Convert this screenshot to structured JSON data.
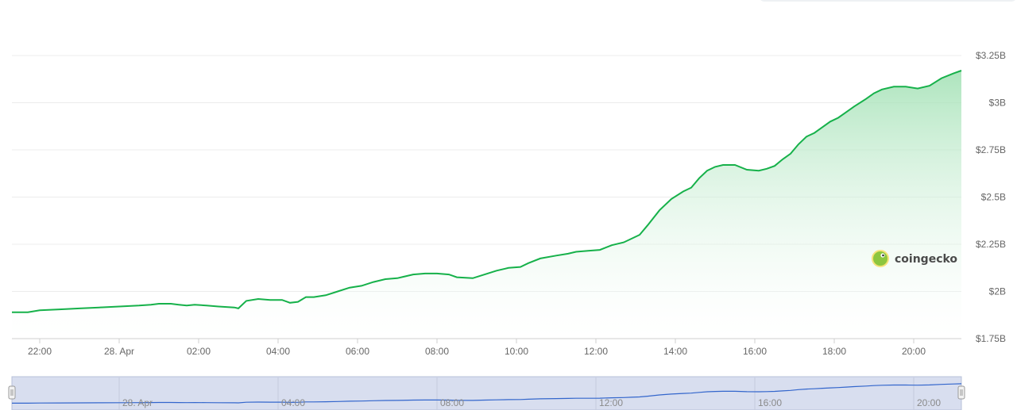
{
  "chart_data": {
    "type": "area",
    "title": "",
    "xlabel": "",
    "ylabel": "",
    "ylim": [
      1.75,
      3.25
    ],
    "y_unit": "B USD",
    "y_ticks": [
      "$1.75B",
      "$2B",
      "$2.25B",
      "$2.5B",
      "$2.75B",
      "$3B",
      "$3.25B"
    ],
    "x_ticks": [
      "22:00",
      "28. Apr",
      "02:00",
      "04:00",
      "06:00",
      "08:00",
      "10:00",
      "12:00",
      "14:00",
      "16:00",
      "18:00",
      "20:00"
    ],
    "x_range_hours": [
      -2.7,
      21.2
    ],
    "series": [
      {
        "color": "#16b14a",
        "fill_color": "#c7efd3",
        "x": [
          -2.7,
          -2.3,
          -2.0,
          -1.5,
          -1.0,
          -0.5,
          0.0,
          0.5,
          0.8,
          1.0,
          1.3,
          1.5,
          1.7,
          1.9,
          2.2,
          2.5,
          2.9,
          3.0,
          3.2,
          3.5,
          3.8,
          4.1,
          4.3,
          4.5,
          4.7,
          4.9,
          5.2,
          5.5,
          5.8,
          6.1,
          6.4,
          6.7,
          7.0,
          7.4,
          7.7,
          8.0,
          8.3,
          8.5,
          8.9,
          9.2,
          9.5,
          9.8,
          10.1,
          10.3,
          10.6,
          11.0,
          11.3,
          11.5,
          11.8,
          12.1,
          12.4,
          12.7,
          12.9,
          13.1,
          13.3,
          13.6,
          13.9,
          14.2,
          14.4,
          14.6,
          14.8,
          15.0,
          15.2,
          15.5,
          15.8,
          16.1,
          16.3,
          16.5,
          16.7,
          16.9,
          17.1,
          17.3,
          17.5,
          17.7,
          17.9,
          18.1,
          18.3,
          18.5,
          18.8,
          19.0,
          19.2,
          19.5,
          19.8,
          20.1,
          20.4,
          20.7,
          21.0,
          21.2
        ],
        "values": [
          1.89,
          1.89,
          1.9,
          1.905,
          1.91,
          1.915,
          1.92,
          1.925,
          1.93,
          1.935,
          1.935,
          1.93,
          1.925,
          1.93,
          1.925,
          1.92,
          1.915,
          1.91,
          1.95,
          1.96,
          1.955,
          1.955,
          1.94,
          1.945,
          1.97,
          1.97,
          1.98,
          2.0,
          2.02,
          2.03,
          2.05,
          2.065,
          2.07,
          2.09,
          2.095,
          2.095,
          2.09,
          2.075,
          2.07,
          2.09,
          2.11,
          2.125,
          2.13,
          2.15,
          2.175,
          2.19,
          2.2,
          2.21,
          2.215,
          2.22,
          2.245,
          2.26,
          2.28,
          2.3,
          2.35,
          2.43,
          2.49,
          2.53,
          2.55,
          2.6,
          2.64,
          2.66,
          2.67,
          2.67,
          2.645,
          2.64,
          2.65,
          2.665,
          2.7,
          2.73,
          2.78,
          2.82,
          2.84,
          2.87,
          2.9,
          2.92,
          2.95,
          2.98,
          3.02,
          3.05,
          3.07,
          3.085,
          3.085,
          3.075,
          3.09,
          3.13,
          3.155,
          3.17
        ]
      }
    ],
    "grid": true,
    "legend": "none"
  },
  "navigator": {
    "labels": [
      "28. Apr",
      "04:00",
      "08:00",
      "12:00",
      "16:00",
      "20:00"
    ],
    "series_color": "#3366cc",
    "selection_color": "#d8deef"
  },
  "watermark": {
    "text": "coingecko",
    "icon": "gecko-logo-icon"
  }
}
